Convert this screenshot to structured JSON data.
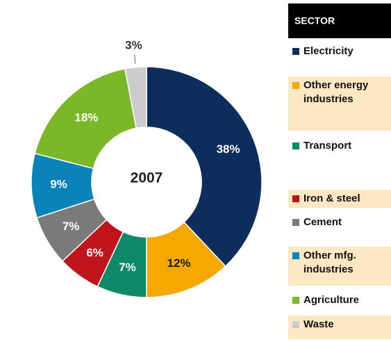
{
  "chart_data": {
    "type": "donut",
    "center_label": "2007",
    "legend_title": "SECTOR",
    "categories": [
      "Electricity",
      "Other energy industries",
      "Transport",
      "Iron & steel",
      "Cement",
      "Other mfg. industries",
      "Agriculture",
      "Waste"
    ],
    "values": [
      38,
      12,
      7,
      6,
      7,
      9,
      18,
      3
    ],
    "value_labels": [
      "38%",
      "12%",
      "7%",
      "6%",
      "7%",
      "9%",
      "18%",
      "3%"
    ],
    "colors": [
      "#0d2e5c",
      "#f5a800",
      "#0f8a68",
      "#c0141c",
      "#7a7a7a",
      "#0a83b8",
      "#7ab829",
      "#cccccc"
    ],
    "label_colors": [
      "#ffffff",
      "#1a1a1a",
      "#ffffff",
      "#ffffff",
      "#ffffff",
      "#ffffff",
      "#ffffff",
      "#333333"
    ],
    "legend_position": "right"
  }
}
